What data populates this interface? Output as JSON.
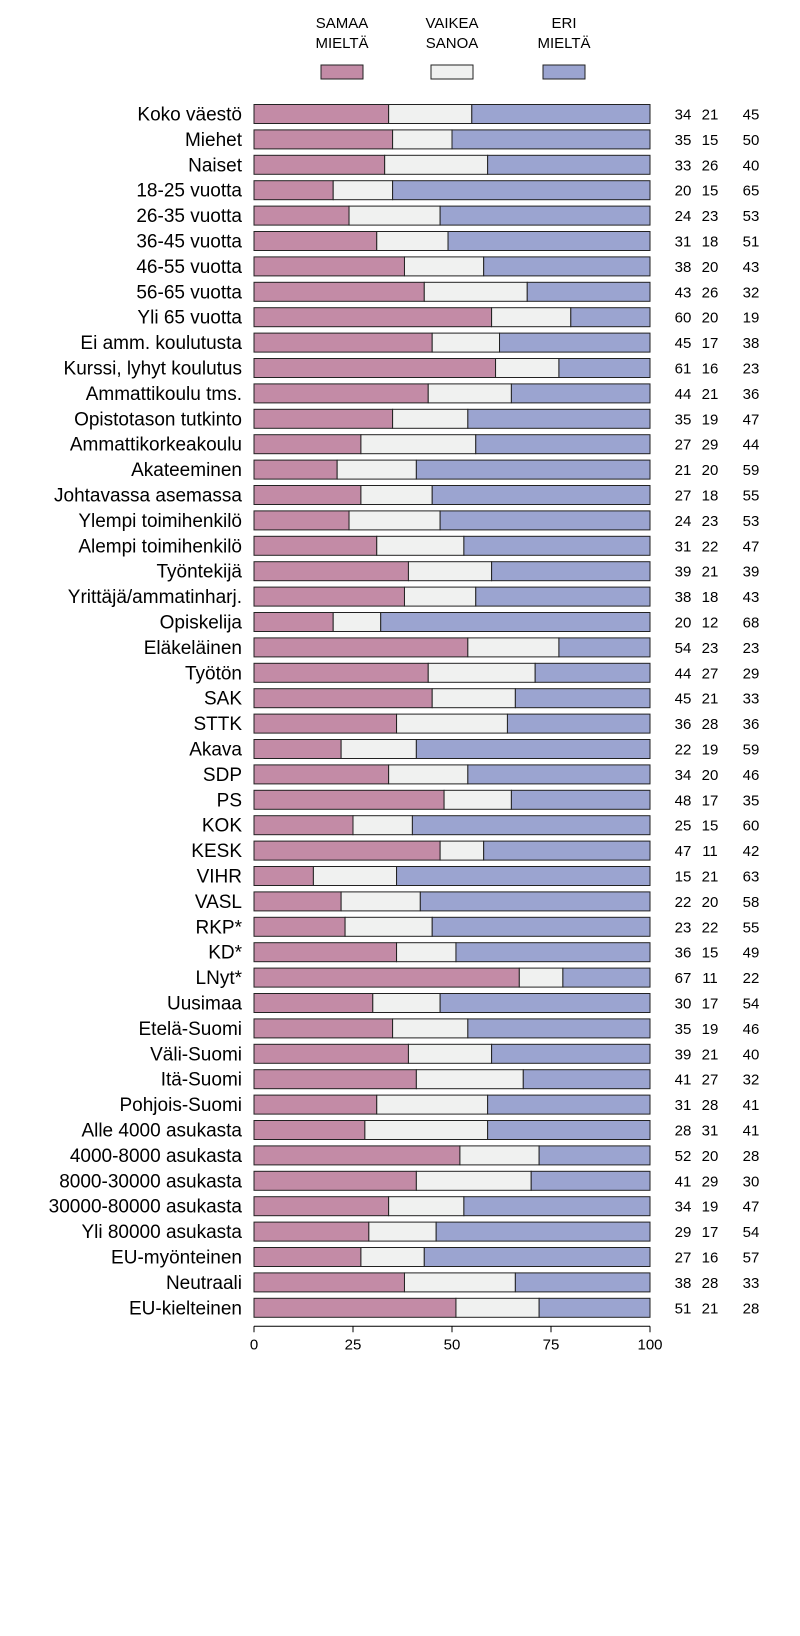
{
  "chart_data": {
    "type": "bar",
    "stacked": true,
    "orientation": "horizontal",
    "legend": {
      "placement": "top",
      "items": [
        {
          "line1": "SAMAA",
          "line2": "MIELTÄ",
          "color": "#c38ba6"
        },
        {
          "line1": "VAIKEA",
          "line2": "SANOA",
          "color": "#f0f1f0"
        },
        {
          "line1": "ERI",
          "line2": "MIELTÄ",
          "color": "#9ba4d0"
        }
      ]
    },
    "xlim": [
      0,
      100
    ],
    "xticks": [
      "0",
      "25",
      "50",
      "75",
      "100"
    ],
    "groups": [
      [
        {
          "label": "Koko väestö",
          "values": [
            34,
            21,
            45
          ]
        }
      ],
      [
        {
          "label": "Miehet",
          "values": [
            35,
            15,
            50
          ]
        },
        {
          "label": "Naiset",
          "values": [
            33,
            26,
            40
          ]
        }
      ],
      [
        {
          "label": "18-25 vuotta",
          "values": [
            20,
            15,
            65
          ]
        },
        {
          "label": "26-35 vuotta",
          "values": [
            24,
            23,
            53
          ]
        },
        {
          "label": "36-45 vuotta",
          "values": [
            31,
            18,
            51
          ]
        },
        {
          "label": "46-55 vuotta",
          "values": [
            38,
            20,
            43
          ]
        },
        {
          "label": "56-65 vuotta",
          "values": [
            43,
            26,
            32
          ]
        },
        {
          "label": "Yli 65 vuotta",
          "values": [
            60,
            20,
            19
          ]
        }
      ],
      [
        {
          "label": "Ei amm. koulutusta",
          "values": [
            45,
            17,
            38
          ]
        },
        {
          "label": "Kurssi, lyhyt koulutus",
          "values": [
            61,
            16,
            23
          ]
        },
        {
          "label": "Ammattikoulu tms.",
          "values": [
            44,
            21,
            36
          ]
        },
        {
          "label": "Opistotason tutkinto",
          "values": [
            35,
            19,
            47
          ]
        },
        {
          "label": "Ammattikorkeakoulu",
          "values": [
            27,
            29,
            44
          ]
        },
        {
          "label": "Akateeminen",
          "values": [
            21,
            20,
            59
          ]
        }
      ],
      [
        {
          "label": "Johtavassa asemassa",
          "values": [
            27,
            18,
            55
          ]
        },
        {
          "label": "Ylempi toimihenkilö",
          "values": [
            24,
            23,
            53
          ]
        },
        {
          "label": "Alempi toimihenkilö",
          "values": [
            31,
            22,
            47
          ]
        },
        {
          "label": "Työntekijä",
          "values": [
            39,
            21,
            39
          ]
        },
        {
          "label": "Yrittäjä/ammatinharj.",
          "values": [
            38,
            18,
            43
          ]
        },
        {
          "label": "Opiskelija",
          "values": [
            20,
            12,
            68
          ]
        },
        {
          "label": "Eläkeläinen",
          "values": [
            54,
            23,
            23
          ]
        },
        {
          "label": "Työtön",
          "values": [
            44,
            27,
            29
          ]
        }
      ],
      [
        {
          "label": "SAK",
          "values": [
            45,
            21,
            33
          ]
        },
        {
          "label": "STTK",
          "values": [
            36,
            28,
            36
          ]
        },
        {
          "label": "Akava",
          "values": [
            22,
            19,
            59
          ]
        }
      ],
      [
        {
          "label": "SDP",
          "values": [
            34,
            20,
            46
          ]
        },
        {
          "label": "PS",
          "values": [
            48,
            17,
            35
          ]
        },
        {
          "label": "KOK",
          "values": [
            25,
            15,
            60
          ]
        },
        {
          "label": "KESK",
          "values": [
            47,
            11,
            42
          ]
        },
        {
          "label": "VIHR",
          "values": [
            15,
            21,
            63
          ]
        },
        {
          "label": "VASL",
          "values": [
            22,
            20,
            58
          ]
        },
        {
          "label": "RKP*",
          "values": [
            23,
            22,
            55
          ]
        },
        {
          "label": "KD*",
          "values": [
            36,
            15,
            49
          ]
        },
        {
          "label": "LNyt*",
          "values": [
            67,
            11,
            22
          ]
        }
      ],
      [
        {
          "label": "Uusimaa",
          "values": [
            30,
            17,
            54
          ]
        },
        {
          "label": "Etelä-Suomi",
          "values": [
            35,
            19,
            46
          ]
        },
        {
          "label": "Väli-Suomi",
          "values": [
            39,
            21,
            40
          ]
        },
        {
          "label": "Itä-Suomi",
          "values": [
            41,
            27,
            32
          ]
        },
        {
          "label": "Pohjois-Suomi",
          "values": [
            31,
            28,
            41
          ]
        }
      ],
      [
        {
          "label": "Alle 4000 asukasta",
          "values": [
            28,
            31,
            41
          ]
        },
        {
          "label": "4000-8000 asukasta",
          "values": [
            52,
            20,
            28
          ]
        },
        {
          "label": "8000-30000 asukasta",
          "values": [
            41,
            29,
            30
          ]
        },
        {
          "label": "30000-80000 asukasta",
          "values": [
            34,
            19,
            47
          ]
        },
        {
          "label": "Yli 80000 asukasta",
          "values": [
            29,
            17,
            54
          ]
        }
      ],
      [
        {
          "label": "EU-myönteinen",
          "values": [
            27,
            16,
            57
          ]
        },
        {
          "label": "Neutraali",
          "values": [
            38,
            28,
            33
          ]
        },
        {
          "label": "EU-kielteinen",
          "values": [
            51,
            21,
            28
          ]
        }
      ]
    ]
  }
}
